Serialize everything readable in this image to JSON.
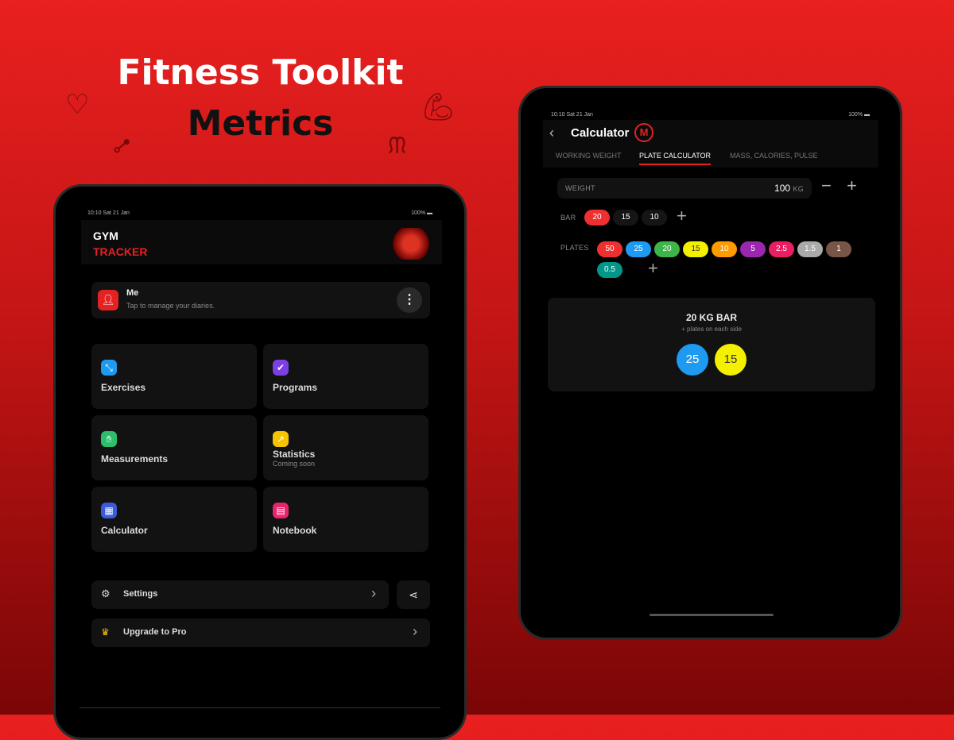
{
  "headline": {
    "line1": "Fitness Toolkit",
    "line2": "Metrics"
  },
  "left_tablet": {
    "status": {
      "time": "10:10",
      "date": "Sat 21 Jan",
      "battery": "100%"
    },
    "app_title": {
      "line1": "GYM",
      "line2": "TRACKER"
    },
    "profile": {
      "name": "Me",
      "subtitle": "Tap to manage your diaries."
    },
    "tiles": [
      {
        "label": "Exercises",
        "sub": "",
        "color": "#1e9af0",
        "icon": "dumbbell-icon"
      },
      {
        "label": "Programs",
        "sub": "",
        "color": "#7b3fe4",
        "icon": "check-icon"
      },
      {
        "label": "Measurements",
        "sub": "",
        "color": "#2dbe6c",
        "icon": "ruler-icon"
      },
      {
        "label": "Statistics",
        "sub": "Coming soon",
        "color": "#f5c400",
        "icon": "chart-icon"
      },
      {
        "label": "Calculator",
        "sub": "",
        "color": "#3b5bdb",
        "icon": "calculator-icon"
      },
      {
        "label": "Notebook",
        "sub": "",
        "color": "#e8246b",
        "icon": "notebook-icon"
      }
    ],
    "settings_label": "Settings",
    "upgrade_label": "Upgrade to Pro"
  },
  "right_tablet": {
    "status": {
      "time": "10:10",
      "date": "Sat 21 Jan",
      "battery": "100%"
    },
    "title": "Calculator",
    "badge": "M",
    "tabs": [
      "WORKING WEIGHT",
      "PLATE CALCULATOR",
      "MASS, CALORIES, PULSE"
    ],
    "active_tab": 1,
    "weight": {
      "label": "WEIGHT",
      "value": "100",
      "unit": "KG"
    },
    "bar": {
      "label": "BAR",
      "options": [
        "20",
        "15",
        "10"
      ],
      "selected": 0
    },
    "plates": {
      "label": "PLATES",
      "items": [
        {
          "v": "50",
          "c": "#f03030"
        },
        {
          "v": "25",
          "c": "#1e9af0"
        },
        {
          "v": "20",
          "c": "#3db54a"
        },
        {
          "v": "15",
          "c": "#f5f000"
        },
        {
          "v": "10",
          "c": "#ff9a00"
        },
        {
          "v": "5",
          "c": "#9b27b0"
        },
        {
          "v": "2.5",
          "c": "#e91e63"
        },
        {
          "v": "1.5",
          "c": "#aaaaaa"
        },
        {
          "v": "1",
          "c": "#795548"
        },
        {
          "v": "0.5",
          "c": "#009688"
        }
      ]
    },
    "result": {
      "title": "20 KG BAR",
      "subtitle": "+ plates on each side",
      "plates": [
        {
          "v": "25",
          "c": "#1e9af0"
        },
        {
          "v": "15",
          "c": "#f5f000"
        }
      ]
    }
  }
}
